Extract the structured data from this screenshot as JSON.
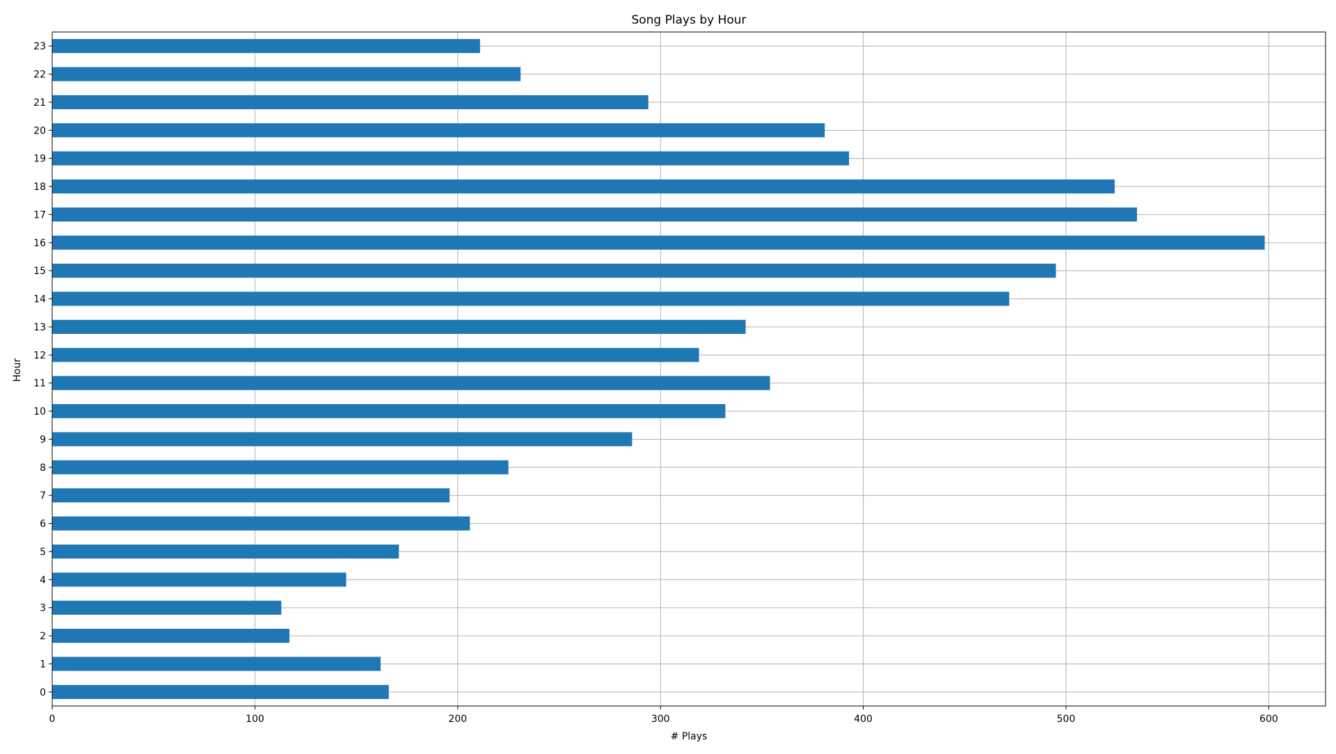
{
  "chart_data": {
    "type": "bar",
    "orientation": "horizontal",
    "title": "Song Plays by Hour",
    "xlabel": "# Plays",
    "ylabel": "Hour",
    "categories": [
      "0",
      "1",
      "2",
      "3",
      "4",
      "5",
      "6",
      "7",
      "8",
      "9",
      "10",
      "11",
      "12",
      "13",
      "14",
      "15",
      "16",
      "17",
      "18",
      "19",
      "20",
      "21",
      "22",
      "23"
    ],
    "values": [
      166,
      162,
      117,
      113,
      145,
      171,
      206,
      196,
      225,
      286,
      332,
      354,
      319,
      342,
      472,
      495,
      598,
      535,
      524,
      393,
      381,
      294,
      231,
      211
    ],
    "xlim": [
      0,
      628
    ],
    "xticks": [
      0,
      100,
      200,
      300,
      400,
      500,
      600
    ],
    "grid": true,
    "bar_color": "#1f77b4",
    "grid_color": "#b0b0b0"
  }
}
